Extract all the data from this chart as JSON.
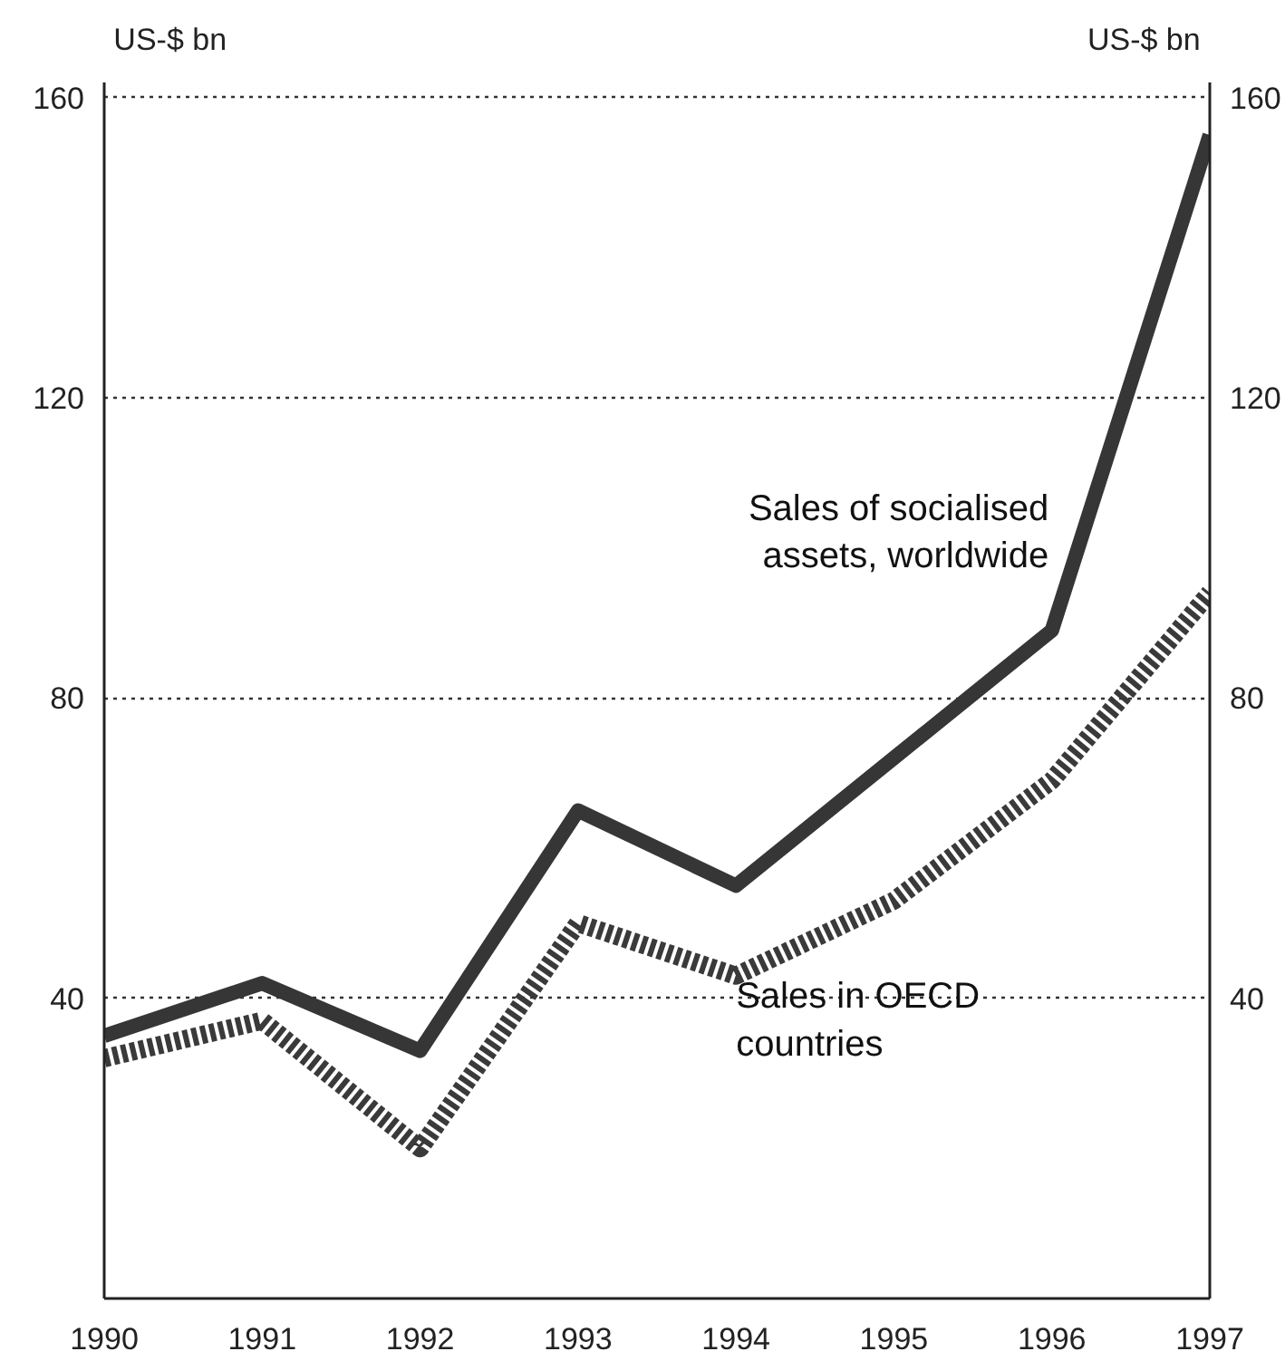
{
  "chart_data": {
    "type": "line",
    "ylabel": "US-$ bn",
    "y2label": "US-$ bn",
    "x": [
      1990,
      1991,
      1992,
      1993,
      1994,
      1995,
      1996,
      1997
    ],
    "xlim": [
      1990,
      1997
    ],
    "xticks": [
      1990,
      1991,
      1992,
      1993,
      1994,
      1995,
      1996,
      1997
    ],
    "ylim": [
      0,
      162
    ],
    "yticks": [
      40,
      80,
      120,
      160
    ],
    "y2lim": [
      0,
      162
    ],
    "y2ticks": [
      40,
      80,
      120,
      160
    ],
    "grid": "y",
    "marker": "none",
    "series": [
      {
        "name": "Sales of socialised assets, worldwide",
        "color": "#363636",
        "line_style": "solid",
        "values": [
          35,
          42,
          33,
          65,
          55,
          72,
          89,
          155
        ]
      },
      {
        "name": "Sales in OECD countries",
        "color": "#3a3a3a",
        "line_style": "dotted",
        "values": [
          32,
          37,
          20,
          50,
          43,
          53,
          69,
          94
        ]
      }
    ]
  }
}
